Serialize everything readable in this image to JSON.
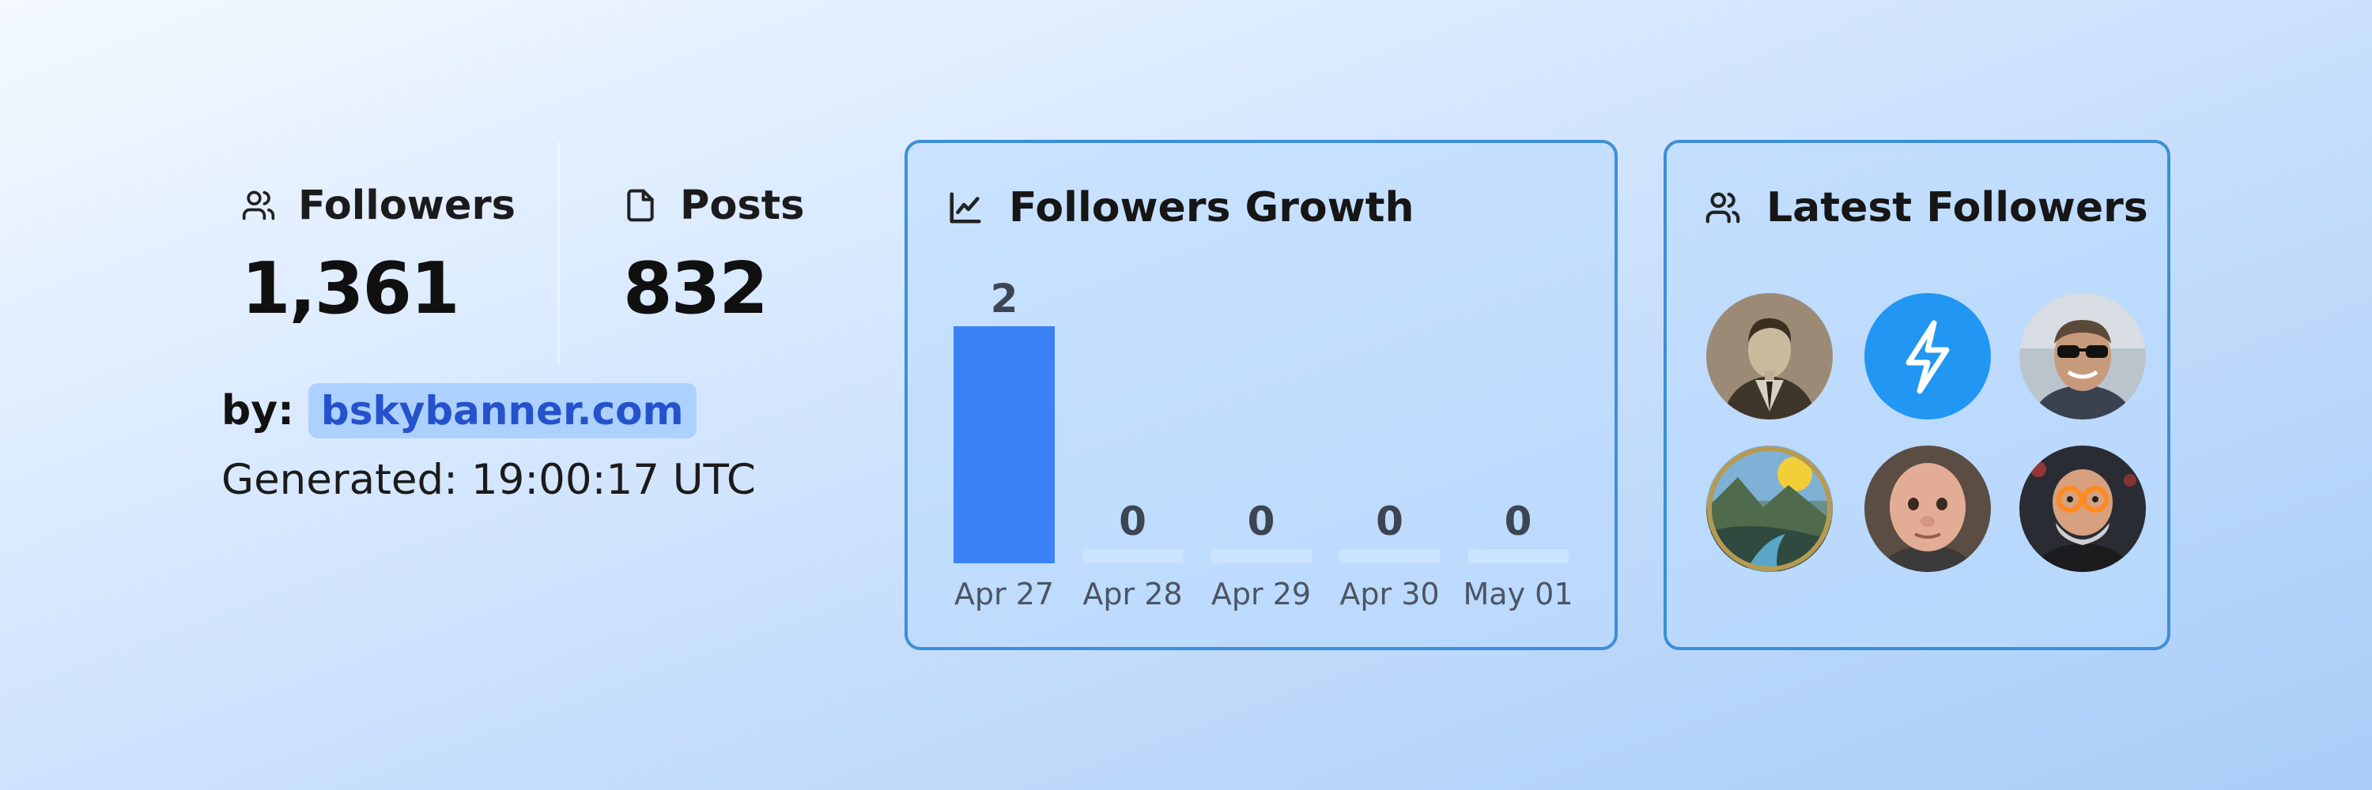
{
  "stats": {
    "followers": {
      "label": "Followers",
      "value": "1,361",
      "icon": "users-icon"
    },
    "posts": {
      "label": "Posts",
      "value": "832",
      "icon": "file-icon"
    }
  },
  "byline": {
    "label": "by:",
    "link": "bskybanner.com"
  },
  "generated": "Generated: 19:00:17 UTC",
  "growth_card": {
    "title": "Followers Growth",
    "icon": "line-chart-icon"
  },
  "latest_card": {
    "title": "Latest Followers",
    "icon": "users-icon",
    "avatars": [
      "vintage-portrait",
      "lightning-logo",
      "sunglasses-man",
      "landscape-painting",
      "bald-man",
      "cartoon-glasses-man"
    ]
  },
  "colors": {
    "bar": "#3b82f6",
    "card_border": "#3b8fd8",
    "link": "#2552cc",
    "lightning_avatar": "#2196f3"
  },
  "chart_data": {
    "type": "bar",
    "categories": [
      "Apr 27",
      "Apr 28",
      "Apr 29",
      "Apr 30",
      "May 01"
    ],
    "values": [
      2,
      0,
      0,
      0,
      0
    ],
    "title": "Followers Growth",
    "xlabel": "",
    "ylabel": "",
    "ylim": [
      0,
      2
    ],
    "grid": false
  }
}
